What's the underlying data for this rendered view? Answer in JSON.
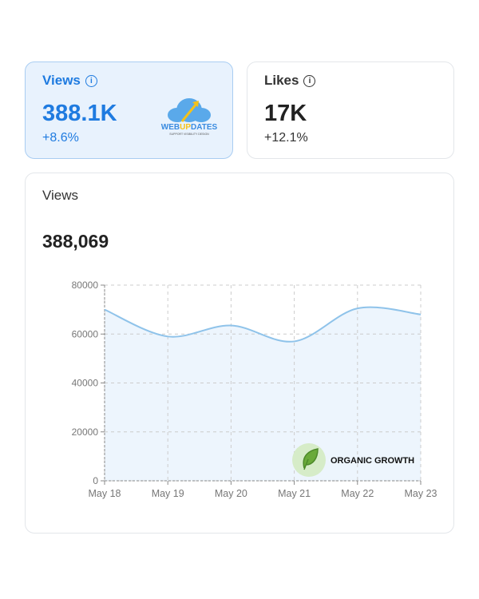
{
  "cards": [
    {
      "title": "Views",
      "value": "388.1K",
      "change": "+8.6%",
      "selected": true
    },
    {
      "title": "Likes",
      "value": "17K",
      "change": "+12.1%",
      "selected": false
    }
  ],
  "logo": {
    "text_a": "WEB",
    "text_b": "UP",
    "text_c": "DATES",
    "tagline": "SUPPORT VISIBILITY DESIGN"
  },
  "badge": {
    "label": "ORGANIC GROWTH",
    "icon": "leaf-icon"
  },
  "main": {
    "title": "Views",
    "total": "388,069"
  },
  "colors": {
    "accent": "#1f7be0",
    "line": "#8fc3ea",
    "fill": "#edf5fd"
  },
  "chart_data": {
    "type": "area",
    "categories": [
      "May 18",
      "May 19",
      "May 20",
      "May 21",
      "May 22",
      "May 23"
    ],
    "values": [
      70000,
      59000,
      63500,
      57000,
      70500,
      68000
    ],
    "yticks": [
      0,
      20000,
      40000,
      60000,
      80000
    ],
    "ylim": [
      0,
      80000
    ],
    "grid": true
  }
}
